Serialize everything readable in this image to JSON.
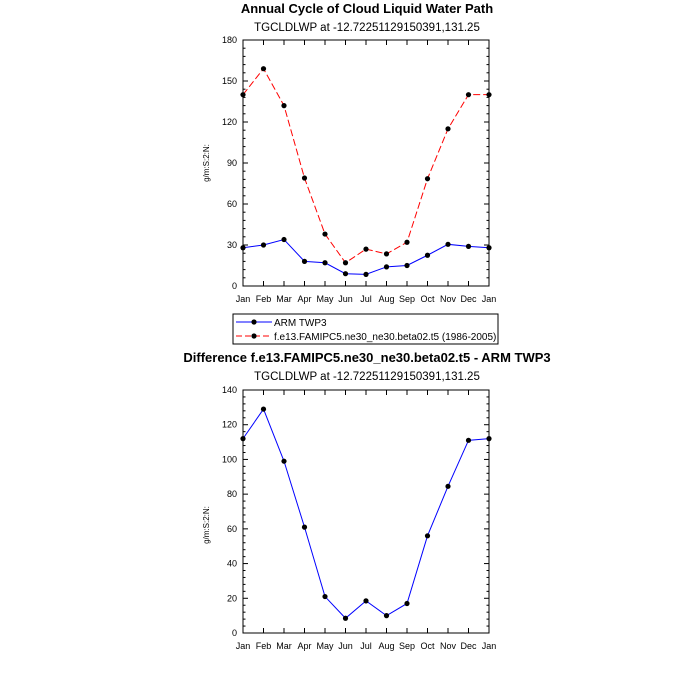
{
  "chart_data": [
    {
      "type": "line",
      "title": "Annual Cycle of Cloud Liquid Water Path",
      "subtitle": "TGCLDLWP at -12.72251129150391,131.25",
      "xlabel": "",
      "ylabel": "g/m:S:2:N:",
      "categories": [
        "Jan",
        "Feb",
        "Mar",
        "Apr",
        "May",
        "Jun",
        "Jul",
        "Aug",
        "Sep",
        "Oct",
        "Nov",
        "Dec",
        "Jan"
      ],
      "ylim": [
        0,
        180
      ],
      "yticks": [
        0,
        30,
        60,
        90,
        120,
        150,
        180
      ],
      "grid": false,
      "legend_position": "bottom",
      "series": [
        {
          "name": "ARM TWP3",
          "color": "#0000ff",
          "dashed": false,
          "values": [
            28,
            30,
            34,
            18,
            17,
            9,
            8.5,
            14,
            15,
            22.5,
            30.5,
            29,
            28
          ]
        },
        {
          "name": "f.e13.FAMIPC5.ne30_ne30.beta02.t5 (1986-2005)",
          "color": "#ff0000",
          "dashed": true,
          "values": [
            140,
            159,
            132,
            79,
            38,
            17,
            27,
            23.5,
            32,
            78.5,
            115,
            140,
            140
          ]
        }
      ]
    },
    {
      "type": "line",
      "title": "Difference f.e13.FAMIPC5.ne30_ne30.beta02.t5 - ARM TWP3",
      "subtitle": "TGCLDLWP at -12.72251129150391,131.25",
      "xlabel": "",
      "ylabel": "g/m:S:2:N:",
      "categories": [
        "Jan",
        "Feb",
        "Mar",
        "Apr",
        "May",
        "Jun",
        "Jul",
        "Aug",
        "Sep",
        "Oct",
        "Nov",
        "Dec",
        "Jan"
      ],
      "ylim": [
        0,
        140
      ],
      "yticks": [
        0,
        20,
        40,
        60,
        80,
        100,
        120,
        140
      ],
      "grid": false,
      "series": [
        {
          "color": "#0000ff",
          "dashed": false,
          "values": [
            112,
            129,
            99,
            61,
            21,
            8.5,
            18.5,
            10,
            17,
            56,
            84.5,
            111,
            112
          ]
        }
      ]
    }
  ]
}
